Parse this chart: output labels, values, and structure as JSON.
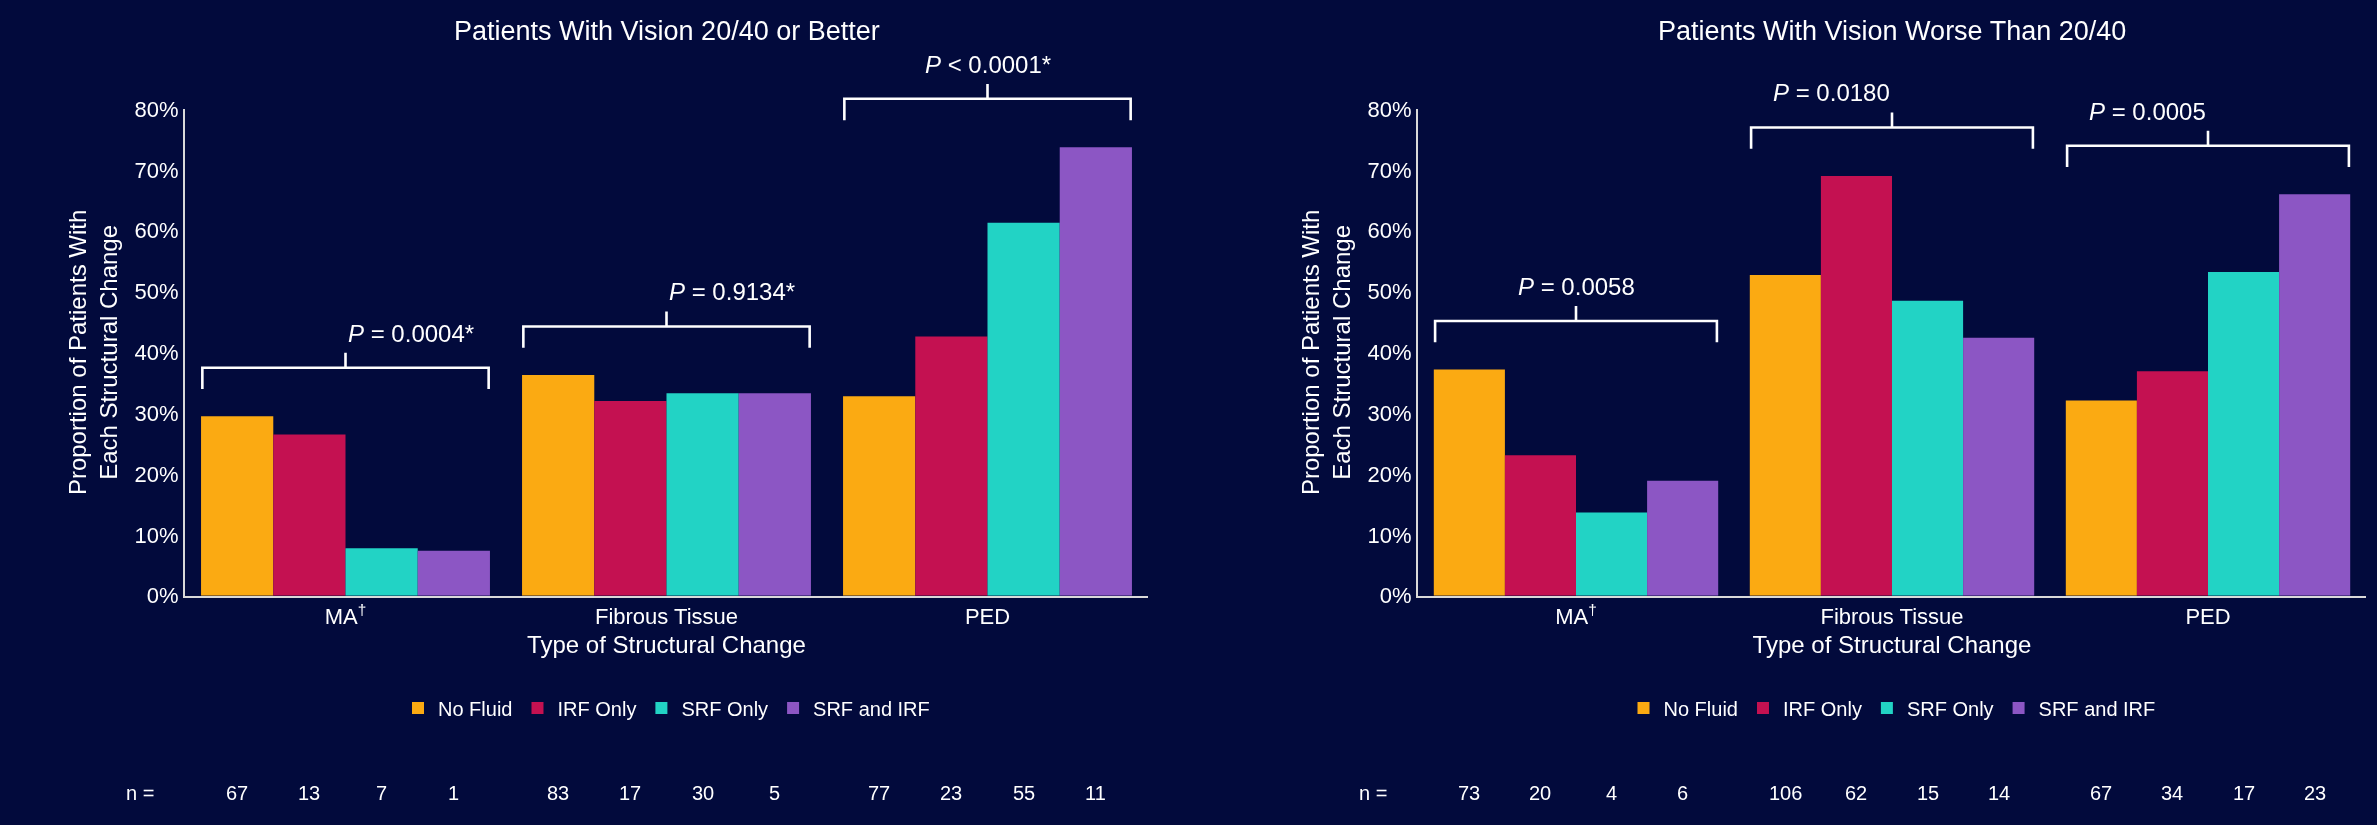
{
  "chart_data": [
    {
      "type": "bar",
      "title": "Patients With Vision 20/40 or Better",
      "xlabel": "Type of Structural Change",
      "ylabel": "Proportion of Patients With\nEach Structural Change",
      "categories": [
        "MA$^{†}$",
        "Fibrous Tissue",
        "PED"
      ],
      "series": [
        {
          "name": "No Fluid",
          "color": "#fbaa12",
          "values": [
            29.5,
            36.3,
            32.8
          ]
        },
        {
          "name": "IRF Only",
          "color": "#c41151",
          "values": [
            26.5,
            32.0,
            42.6
          ]
        },
        {
          "name": "SRF Only",
          "color": "#22d3c5",
          "values": [
            7.8,
            33.3,
            61.3
          ]
        },
        {
          "name": "SRF and IRF",
          "color": "#8c56c4",
          "values": [
            7.4,
            33.3,
            73.7
          ]
        }
      ],
      "ylim": [
        0,
        80
      ],
      "yticks": [
        {
          "value": 0,
          "label": "0%"
        },
        {
          "value": 10,
          "label": "10%"
        },
        {
          "value": 20,
          "label": "20%"
        },
        {
          "value": 30,
          "label": "30%"
        },
        {
          "value": 40,
          "label": "40%"
        },
        {
          "value": 50,
          "label": "50%"
        },
        {
          "value": 60,
          "label": "60%"
        },
        {
          "value": 70,
          "label": "70%"
        },
        {
          "value": 80,
          "label": "80%"
        }
      ],
      "legend": "bottom",
      "annotations": [
        "P = 0.0004*",
        "P = 0.9134*",
        "P < 0.0001*",
        "n =",
        "67",
        "13",
        "7",
        "1",
        "83",
        "17",
        "30",
        "5",
        "77",
        "23",
        "55",
        "11"
      ]
    },
    {
      "type": "bar",
      "title": "Patients With Vision Worse Than 20/40",
      "xlabel": "Type of Structural Change",
      "ylabel": "Proportion of Patients With\nEach Structural Change",
      "categories": [
        "MA$^{†}$",
        "Fibrous Tissue",
        "PED"
      ],
      "series": [
        {
          "name": "No Fluid",
          "color": "#fbaa12",
          "values": [
            37.2,
            52.7,
            32.1
          ]
        },
        {
          "name": "IRF Only",
          "color": "#c41151",
          "values": [
            23.1,
            69.0,
            36.9
          ]
        },
        {
          "name": "SRF Only",
          "color": "#22d3c5",
          "values": [
            13.7,
            48.5,
            53.2
          ]
        },
        {
          "name": "SRF and IRF",
          "color": "#8c56c4",
          "values": [
            18.9,
            42.4,
            66.0
          ]
        }
      ],
      "ylim": [
        0,
        80
      ],
      "yticks": [
        {
          "value": 0,
          "label": "0%"
        },
        {
          "value": 10,
          "label": "10%"
        },
        {
          "value": 20,
          "label": "20%"
        },
        {
          "value": 30,
          "label": "30%"
        },
        {
          "value": 40,
          "label": "40%"
        },
        {
          "value": 50,
          "label": "50%"
        },
        {
          "value": 60,
          "label": "60%"
        },
        {
          "value": 70,
          "label": "70%"
        },
        {
          "value": 80,
          "label": "80%"
        }
      ],
      "legend": "bottom",
      "annotations": [
        "P = 0.0058",
        "P = 0.0180",
        "P = 0.0005",
        "n =",
        "73",
        "20",
        "4",
        "6",
        "106",
        "62",
        "15",
        "14",
        "67",
        "34",
        "17",
        "23"
      ]
    }
  ]
}
